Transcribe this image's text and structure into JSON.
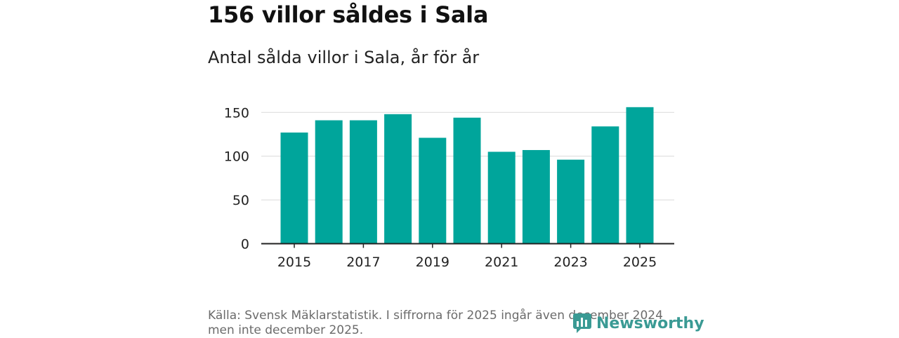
{
  "header": {
    "title": "156 villor såldes i Sala",
    "subtitle": "Antal sålda villor i Sala, år för år"
  },
  "footer": {
    "source": "Källa: Svensk Mäklarstatistik. I siffrorna för 2025 ingår även december 2024 men inte december 2025.",
    "brand": "Newsworthy",
    "brand_icon": "newsworthy-logo-icon"
  },
  "colors": {
    "bar": "#00a59b",
    "grid": "#d9d9d9",
    "axis": "#222222",
    "brand": "#3a9a94"
  },
  "chart_data": {
    "type": "bar",
    "categories": [
      "2015",
      "2016",
      "2017",
      "2018",
      "2019",
      "2020",
      "2021",
      "2022",
      "2023",
      "2024",
      "2025"
    ],
    "values": [
      127,
      141,
      141,
      148,
      121,
      144,
      105,
      107,
      96,
      134,
      156
    ],
    "x_tick_labels": [
      "2015",
      "2017",
      "2019",
      "2021",
      "2023",
      "2025"
    ],
    "y_ticks": [
      0,
      50,
      100,
      150
    ],
    "ylim": [
      0,
      160
    ],
    "title": "",
    "xlabel": "",
    "ylabel": "",
    "grid": true,
    "legend": "none"
  }
}
